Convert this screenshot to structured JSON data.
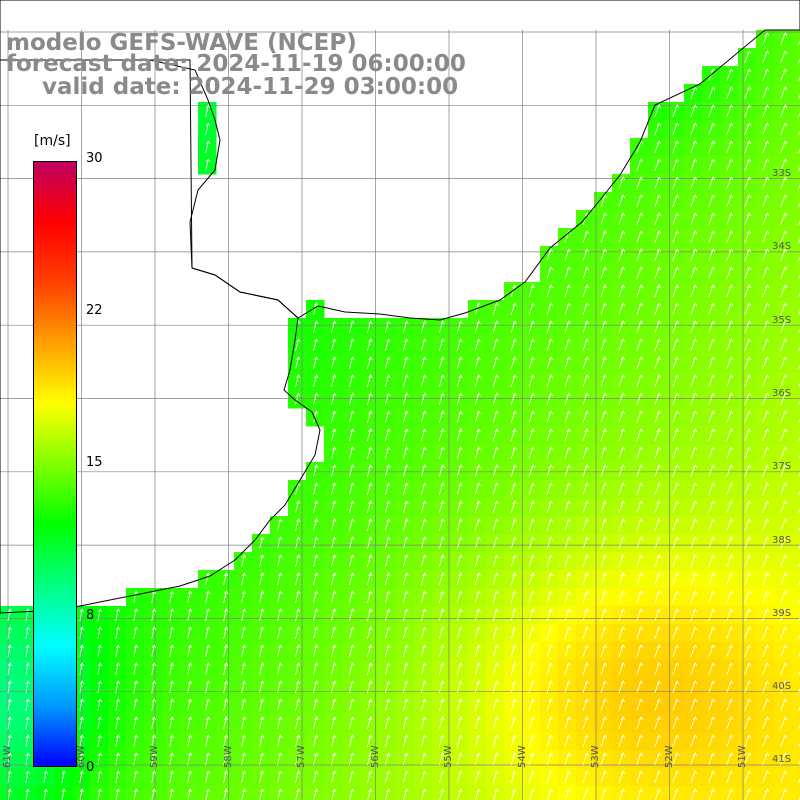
{
  "title": {
    "line1": "modelo GEFS-WAVE (NCEP)",
    "line2": "forecast date: 2024-11-19 06:00:00",
    "line3": "valid date: 2024-11-29 03:00:00"
  },
  "colorbar": {
    "unit": "[m/s]",
    "ticks": [
      "30",
      "22",
      "15",
      "8",
      "0"
    ],
    "tick_values": [
      30,
      22,
      15,
      8,
      0
    ],
    "min": 0,
    "max": 30,
    "colors": [
      "#0000ff",
      "#0099ff",
      "#00ffff",
      "#00ff80",
      "#00ff00",
      "#80ff00",
      "#ffff00",
      "#ffa000",
      "#ff4000",
      "#ff0000",
      "#c00060"
    ]
  },
  "map": {
    "lat_labels": [
      "33S",
      "34S",
      "35S",
      "36S",
      "37S",
      "38S",
      "39S",
      "40S",
      "41S"
    ],
    "lon_labels": [
      "61W",
      "60W",
      "59W",
      "58W",
      "57W",
      "56W",
      "55W",
      "54W",
      "53W",
      "52W",
      "51W"
    ],
    "land_color": "#ffffff",
    "grid_color": "#808080",
    "coast_color": "#000000",
    "arrow_color": "#ffffff",
    "arrow_direction": "north-northeast"
  }
}
